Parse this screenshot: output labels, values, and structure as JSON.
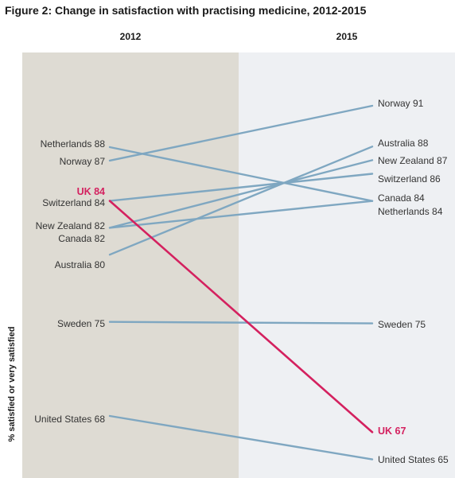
{
  "chart_data": {
    "type": "line",
    "title": "Figure 2: Change in satisfaction with practising medicine, 2012-2015",
    "ylabel": "% satisfied or very satisfied",
    "x": [
      "2012",
      "2015"
    ],
    "ylim": [
      64,
      92
    ],
    "grid": false,
    "legend": "none",
    "series": [
      {
        "name": "Netherlands",
        "values": [
          88,
          84
        ]
      },
      {
        "name": "Norway",
        "values": [
          87,
          91
        ]
      },
      {
        "name": "UK",
        "values": [
          84,
          67
        ]
      },
      {
        "name": "Switzerland",
        "values": [
          84,
          86
        ]
      },
      {
        "name": "New Zealand",
        "values": [
          82,
          87
        ]
      },
      {
        "name": "Canada",
        "values": [
          82,
          84
        ]
      },
      {
        "name": "Australia",
        "values": [
          80,
          88
        ]
      },
      {
        "name": "Sweden",
        "values": [
          75,
          75
        ]
      },
      {
        "name": "United States",
        "values": [
          68,
          65
        ]
      }
    ],
    "left_labels": [
      {
        "series": "Netherlands",
        "text": "Netherlands 88",
        "highlight": false
      },
      {
        "series": "Norway",
        "text": "Norway 87",
        "highlight": false
      },
      {
        "series": "UK",
        "text": "UK 84",
        "highlight": true
      },
      {
        "series": "Switzerland",
        "text": "Switzerland 84",
        "highlight": false
      },
      {
        "series": "New Zealand",
        "text": "New Zealand 82",
        "highlight": false
      },
      {
        "series": "Canada",
        "text": "Canada 82",
        "highlight": false
      },
      {
        "series": "Australia",
        "text": "Australia 80",
        "highlight": false
      },
      {
        "series": "Sweden",
        "text": "Sweden 75",
        "highlight": false
      },
      {
        "series": "United States",
        "text": "United States 68",
        "highlight": false
      }
    ],
    "right_labels": [
      {
        "series": "Norway",
        "text": "Norway 91",
        "highlight": false
      },
      {
        "series": "Australia",
        "text": "Australia 88",
        "highlight": false
      },
      {
        "series": "New Zealand",
        "text": "New Zealand 87",
        "highlight": false
      },
      {
        "series": "Switzerland",
        "text": "Switzerland 86",
        "highlight": false
      },
      {
        "series": "Canada",
        "text": "Canada 84",
        "highlight": false
      },
      {
        "series": "Netherlands",
        "text": "Netherlands 84",
        "highlight": false
      },
      {
        "series": "Sweden",
        "text": "Sweden 75",
        "highlight": false
      },
      {
        "series": "UK",
        "text": "UK 67",
        "highlight": true
      },
      {
        "series": "United States",
        "text": "United States 65",
        "highlight": false
      }
    ],
    "highlight_series": "UK",
    "colors": {
      "line": "#7fa7c1",
      "highlight": "#d4215f",
      "panel_2012": "#dedbd3",
      "panel_2015": "#eef0f3",
      "title": "#1a1a1a",
      "text": "#333333"
    }
  }
}
